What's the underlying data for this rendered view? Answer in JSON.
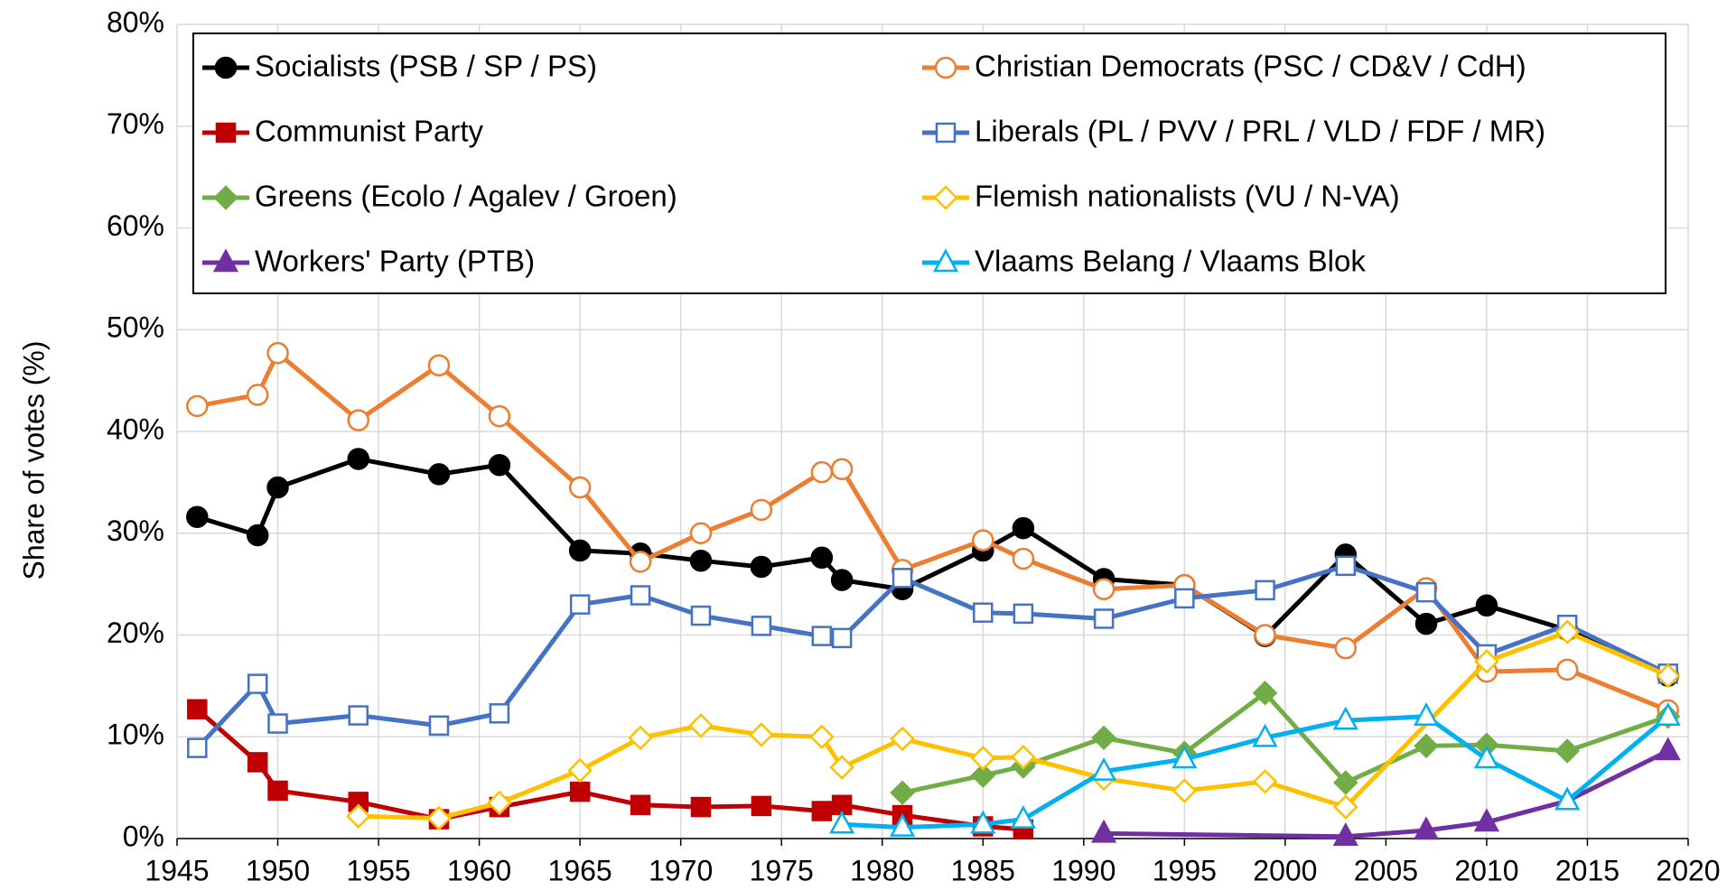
{
  "chart_data": {
    "type": "line",
    "y_label": "Share of votes (%)",
    "xlim": [
      1945,
      2020
    ],
    "xticks": [
      1945,
      1950,
      1955,
      1960,
      1965,
      1970,
      1975,
      1980,
      1985,
      1990,
      1995,
      2000,
      2005,
      2010,
      2015,
      2020
    ],
    "ylim": [
      0,
      80
    ],
    "yticks": [
      {
        "value": 0,
        "label": "0%"
      },
      {
        "value": 10,
        "label": "10%"
      },
      {
        "value": 20,
        "label": "20%"
      },
      {
        "value": 30,
        "label": "30%"
      },
      {
        "value": 40,
        "label": "40%"
      },
      {
        "value": 50,
        "label": "50%"
      },
      {
        "value": 60,
        "label": "60%"
      },
      {
        "value": 70,
        "label": "70%"
      },
      {
        "value": 80,
        "label": "80%"
      }
    ],
    "grid": true,
    "legend": "top-left",
    "series": [
      {
        "name": "Socialists (PSB / SP / PS)",
        "color": "#000000",
        "marker": "circle",
        "filled": true,
        "x": [
          1946,
          1949,
          1950,
          1954,
          1958,
          1961,
          1965,
          1968,
          1971,
          1974,
          1977,
          1978,
          1981,
          1985,
          1987,
          1991,
          1995,
          1999,
          2003,
          2007,
          2010,
          2014,
          2019
        ],
        "values": [
          31.6,
          29.8,
          34.5,
          37.3,
          35.8,
          36.7,
          28.3,
          28.0,
          27.3,
          26.7,
          27.6,
          25.4,
          24.5,
          28.3,
          30.5,
          25.5,
          24.9,
          19.9,
          27.9,
          21.1,
          22.9,
          20.5,
          16.0
        ]
      },
      {
        "name": "Christian Democrats (PSC / CD&V / CdH)",
        "color": "#ed7d31",
        "marker": "circle",
        "filled": false,
        "x": [
          1946,
          1949,
          1950,
          1954,
          1958,
          1961,
          1965,
          1968,
          1971,
          1974,
          1977,
          1978,
          1981,
          1985,
          1987,
          1991,
          1995,
          1999,
          2003,
          2007,
          2010,
          2014,
          2019
        ],
        "values": [
          42.5,
          43.6,
          47.7,
          41.1,
          46.5,
          41.5,
          34.5,
          27.2,
          30.0,
          32.3,
          36.0,
          36.3,
          26.4,
          29.3,
          27.5,
          24.5,
          24.9,
          20.0,
          18.7,
          24.6,
          16.4,
          16.6,
          12.6
        ]
      },
      {
        "name": "Communist Party",
        "color": "#c00000",
        "marker": "square",
        "filled": true,
        "x": [
          1946,
          1949,
          1950,
          1954,
          1958,
          1961,
          1965,
          1968,
          1971,
          1974,
          1977,
          1978,
          1981,
          1985,
          1987
        ],
        "values": [
          12.7,
          7.5,
          4.7,
          3.6,
          1.9,
          3.1,
          4.6,
          3.3,
          3.1,
          3.2,
          2.7,
          3.3,
          2.3,
          1.2,
          0.9
        ]
      },
      {
        "name": "Liberals (PL / PVV / PRL / VLD / FDF / MR)",
        "color": "#4472c4",
        "marker": "square",
        "filled": false,
        "x": [
          1946,
          1949,
          1950,
          1954,
          1958,
          1961,
          1965,
          1968,
          1971,
          1974,
          1977,
          1978,
          1981,
          1985,
          1987,
          1991,
          1995,
          1999,
          2003,
          2007,
          2010,
          2014,
          2019
        ],
        "values": [
          8.9,
          15.2,
          11.3,
          12.1,
          11.1,
          12.3,
          23.0,
          23.9,
          21.9,
          20.9,
          19.9,
          19.7,
          25.6,
          22.2,
          22.1,
          21.6,
          23.6,
          24.4,
          26.8,
          24.2,
          18.1,
          21.0,
          16.2
        ]
      },
      {
        "name": "Greens (Ecolo / Agalev / Groen)",
        "color": "#70ad47",
        "marker": "diamond",
        "filled": true,
        "x": [
          1981,
          1985,
          1987,
          1991,
          1995,
          1999,
          2003,
          2007,
          2010,
          2014,
          2019
        ],
        "values": [
          4.5,
          6.2,
          7.1,
          9.9,
          8.4,
          14.3,
          5.5,
          9.1,
          9.2,
          8.6,
          12.0
        ]
      },
      {
        "name": "Flemish nationalists (VU / N-VA)",
        "color": "#ffc000",
        "marker": "diamond",
        "filled": false,
        "x": [
          1954,
          1958,
          1961,
          1965,
          1968,
          1971,
          1974,
          1977,
          1978,
          1981,
          1985,
          1987,
          1991,
          1995,
          1999,
          2003,
          2010,
          2014,
          2019
        ],
        "values": [
          2.2,
          2.0,
          3.5,
          6.7,
          9.9,
          11.1,
          10.2,
          10.0,
          7.0,
          9.8,
          7.9,
          8.0,
          5.9,
          4.7,
          5.6,
          3.1,
          17.4,
          20.3,
          16.0
        ]
      },
      {
        "name": "Workers' Party (PTB)",
        "color": "#7030a0",
        "marker": "triangle",
        "filled": true,
        "x": [
          1991,
          2003,
          2007,
          2010,
          2014,
          2019
        ],
        "values": [
          0.5,
          0.2,
          0.8,
          1.6,
          3.7,
          8.6
        ]
      },
      {
        "name": "Vlaams Belang / Vlaams Blok",
        "color": "#00b0f0",
        "marker": "triangle",
        "filled": false,
        "x": [
          1978,
          1981,
          1985,
          1987,
          1991,
          1995,
          1999,
          2003,
          2007,
          2010,
          2014,
          2019
        ],
        "values": [
          1.4,
          1.1,
          1.4,
          1.9,
          6.6,
          7.8,
          9.9,
          11.6,
          12.0,
          7.8,
          3.7,
          12.0
        ]
      }
    ]
  }
}
